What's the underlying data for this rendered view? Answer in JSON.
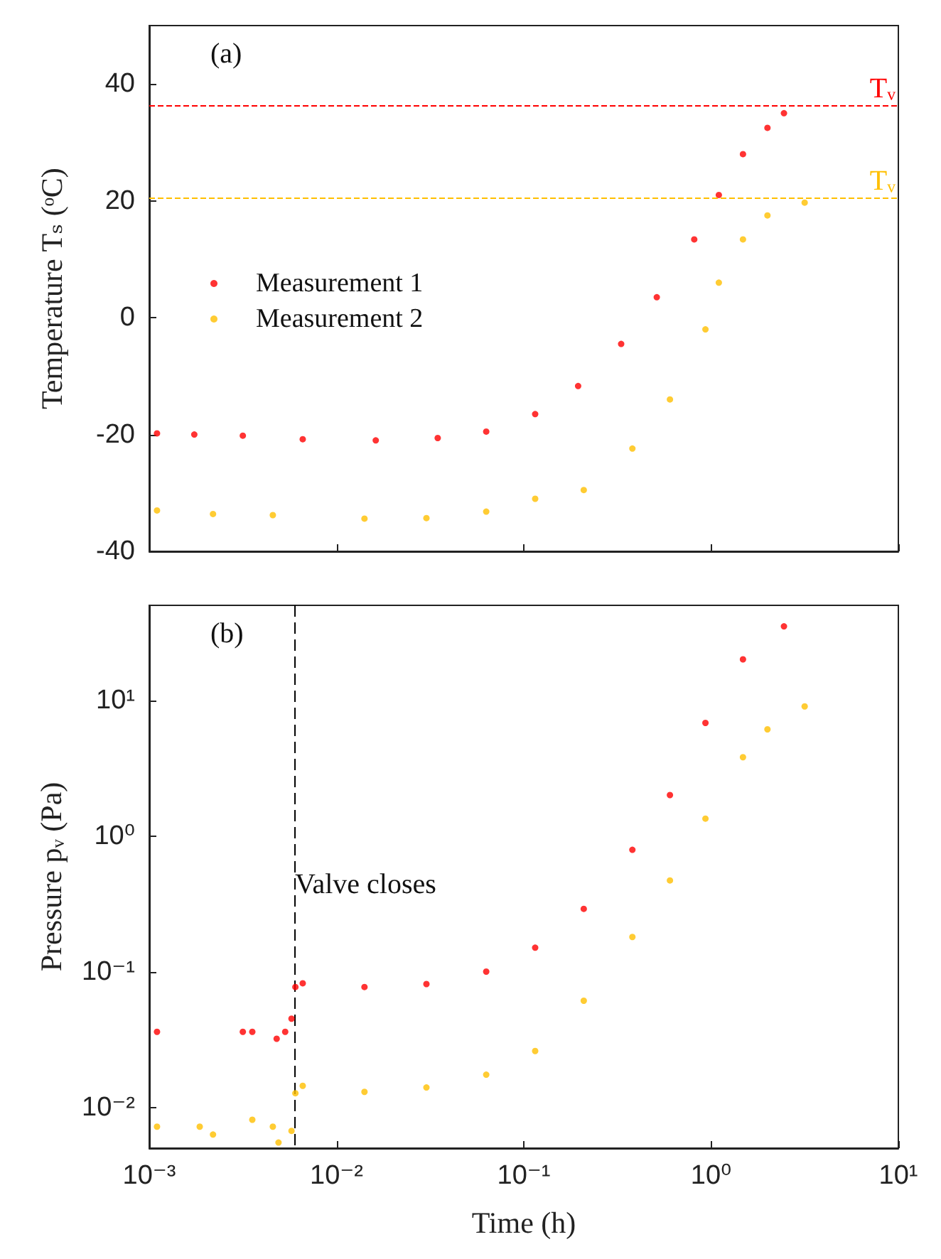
{
  "chart_data": [
    {
      "type": "scatter",
      "ylabel": "Temperature Tₛ (ᵒC)",
      "annotations": [
        "(a)"
      ],
      "log": "x",
      "xlim": [
        0.001,
        10
      ],
      "ylim": [
        -40,
        50
      ],
      "yticks": [
        -40,
        -20,
        0,
        20,
        40
      ],
      "tick_labels": "y",
      "legend": "left",
      "grid": false,
      "marker": "circle",
      "series": [
        {
          "name": "Measurement 1",
          "color": "#ff0000",
          "x": [
            0.0011,
            0.00174,
            0.00316,
            0.0066,
            0.0162,
            0.0347,
            0.063,
            0.115,
            0.195,
            0.331,
            0.513,
            0.813,
            1.1,
            1.48,
            2.0,
            2.45
          ],
          "values": [
            -19.8,
            -20,
            -20.2,
            -20.8,
            -21,
            -20.6,
            -19.5,
            -16.5,
            -11.7,
            -4.5,
            3.5,
            13.4,
            21,
            28,
            32.5,
            35
          ]
        },
        {
          "name": "Measurement 2",
          "color": "#ffbf00",
          "x": [
            0.0011,
            0.00219,
            0.00457,
            0.0141,
            0.0302,
            0.063,
            0.115,
            0.209,
            0.38,
            0.603,
            0.933,
            1.1,
            1.48,
            2.0,
            3.16
          ],
          "values": [
            -33,
            -33.6,
            -33.8,
            -34.4,
            -34.3,
            -33.2,
            -31,
            -29.5,
            -22.4,
            -14,
            -2,
            6,
            13.4,
            17.5,
            19.7
          ]
        }
      ],
      "ref_lines": [
        {
          "axis": "y",
          "value": 36.3,
          "label": "Tᵥ",
          "color": "#ff0000",
          "line_style": "dashed"
        },
        {
          "axis": "y",
          "value": 20.4,
          "label": "Tᵥ",
          "color": "#ffbf00",
          "line_style": "dashed"
        }
      ]
    },
    {
      "type": "scatter",
      "xlabel": "Time (h)",
      "ylabel": "Pressure pᵥ (Pa)",
      "annotations": [
        "(b)"
      ],
      "log": "xy",
      "xlim": [
        0.001,
        10
      ],
      "ylim": [
        0.005,
        50
      ],
      "xticks": [
        {
          "value": 0.001,
          "label": "10⁻³"
        },
        {
          "value": 0.01,
          "label": "10⁻²"
        },
        {
          "value": 0.1,
          "label": "10⁻¹"
        },
        {
          "value": 1,
          "label": "10⁰"
        },
        {
          "value": 10,
          "label": "10¹"
        }
      ],
      "yticks": [
        {
          "value": 0.01,
          "label": "10⁻²"
        },
        {
          "value": 0.1,
          "label": "10⁻¹"
        },
        {
          "value": 1,
          "label": "10⁰"
        },
        {
          "value": 10,
          "label": "10¹"
        }
      ],
      "grid": false,
      "marker": "circle",
      "series": [
        {
          "color": "#ff0000",
          "x": [
            0.0011,
            0.00316,
            0.00355,
            0.00479,
            0.00532,
            0.00575,
            0.00603,
            0.0066,
            0.0141,
            0.0302,
            0.063,
            0.115,
            0.209,
            0.38,
            0.603,
            0.933,
            1.48,
            2.45
          ],
          "values": [
            0.036,
            0.036,
            0.036,
            0.032,
            0.036,
            0.045,
            0.077,
            0.082,
            0.077,
            0.081,
            0.1,
            0.15,
            0.29,
            0.79,
            2.0,
            6.8,
            20,
            35
          ]
        },
        {
          "color": "#ffbf00",
          "x": [
            0.0011,
            0.00186,
            0.00219,
            0.00355,
            0.00457,
            0.0049,
            0.00575,
            0.00603,
            0.0066,
            0.0141,
            0.0302,
            0.063,
            0.115,
            0.209,
            0.38,
            0.603,
            0.933,
            1.48,
            2.0,
            3.16
          ],
          "values": [
            0.0072,
            0.0072,
            0.0063,
            0.0081,
            0.0072,
            0.0055,
            0.0067,
            0.0127,
            0.0144,
            0.013,
            0.014,
            0.0174,
            0.026,
            0.061,
            0.18,
            0.47,
            1.34,
            3.8,
            6.1,
            9
          ]
        }
      ],
      "ref_lines": [
        {
          "axis": "x",
          "value": 0.006,
          "label": "Valve closes",
          "color": "#000000",
          "line_style": "dashed"
        }
      ]
    }
  ]
}
